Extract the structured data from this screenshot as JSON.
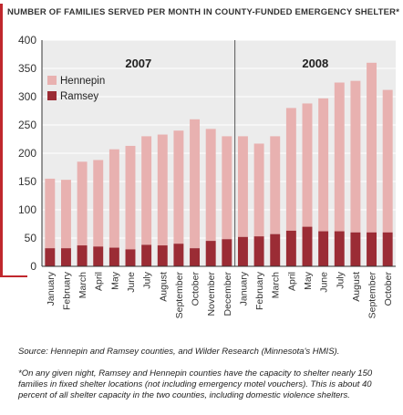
{
  "title": "NUMBER OF FAMILIES SERVED PER MONTH IN COUNTY-FUNDED EMERGENCY SHELTER*",
  "source": "Source: Hennepin and Ramsey counties, and Wilder Research (Minnesota's HMIS).",
  "footnote": "*On any given night, Ramsey and Hennepin counties have the capacity to shelter nearly 150 families in fixed shelter locations (not including emergency motel vouchers). This is about 40 percent of all shelter capacity in the two counties, including domestic violence shelters.",
  "colors": {
    "hennepin": "#e8b1b0",
    "ramsey": "#9b2c35",
    "accent": "#c0272d",
    "grid": "#ffffff",
    "plot_bg": "#ececec"
  },
  "chart_data": {
    "type": "bar",
    "stacked": true,
    "ylim": [
      0,
      400
    ],
    "yticks": [
      0,
      50,
      100,
      150,
      200,
      250,
      300,
      350,
      400
    ],
    "legend": [
      "Hennepin",
      "Ramsey"
    ],
    "legend_position": "top-left",
    "groups": [
      {
        "label": "2007",
        "categories": [
          "January",
          "February",
          "March",
          "April",
          "May",
          "June",
          "July",
          "August",
          "September",
          "October",
          "November",
          "December"
        ],
        "totals": [
          155,
          153,
          185,
          188,
          207,
          213,
          230,
          233,
          240,
          260,
          243,
          230
        ],
        "ramsey": [
          32,
          32,
          37,
          35,
          33,
          30,
          38,
          37,
          40,
          32,
          45,
          48
        ]
      },
      {
        "label": "2008",
        "categories": [
          "January",
          "February",
          "March",
          "April",
          "May",
          "June",
          "July",
          "August",
          "September",
          "October"
        ],
        "totals": [
          230,
          217,
          230,
          280,
          288,
          297,
          325,
          328,
          360,
          312
        ],
        "ramsey": [
          52,
          53,
          57,
          63,
          70,
          62,
          62,
          60,
          60,
          60
        ]
      }
    ],
    "series": [
      {
        "name": "Hennepin",
        "values": [
          123,
          121,
          148,
          153,
          174,
          183,
          192,
          196,
          200,
          228,
          198,
          182,
          178,
          164,
          173,
          217,
          218,
          235,
          263,
          268,
          300,
          252
        ]
      },
      {
        "name": "Ramsey",
        "values": [
          32,
          32,
          37,
          35,
          33,
          30,
          38,
          37,
          40,
          32,
          45,
          48,
          52,
          53,
          57,
          63,
          70,
          62,
          62,
          60,
          60,
          60
        ]
      }
    ]
  }
}
